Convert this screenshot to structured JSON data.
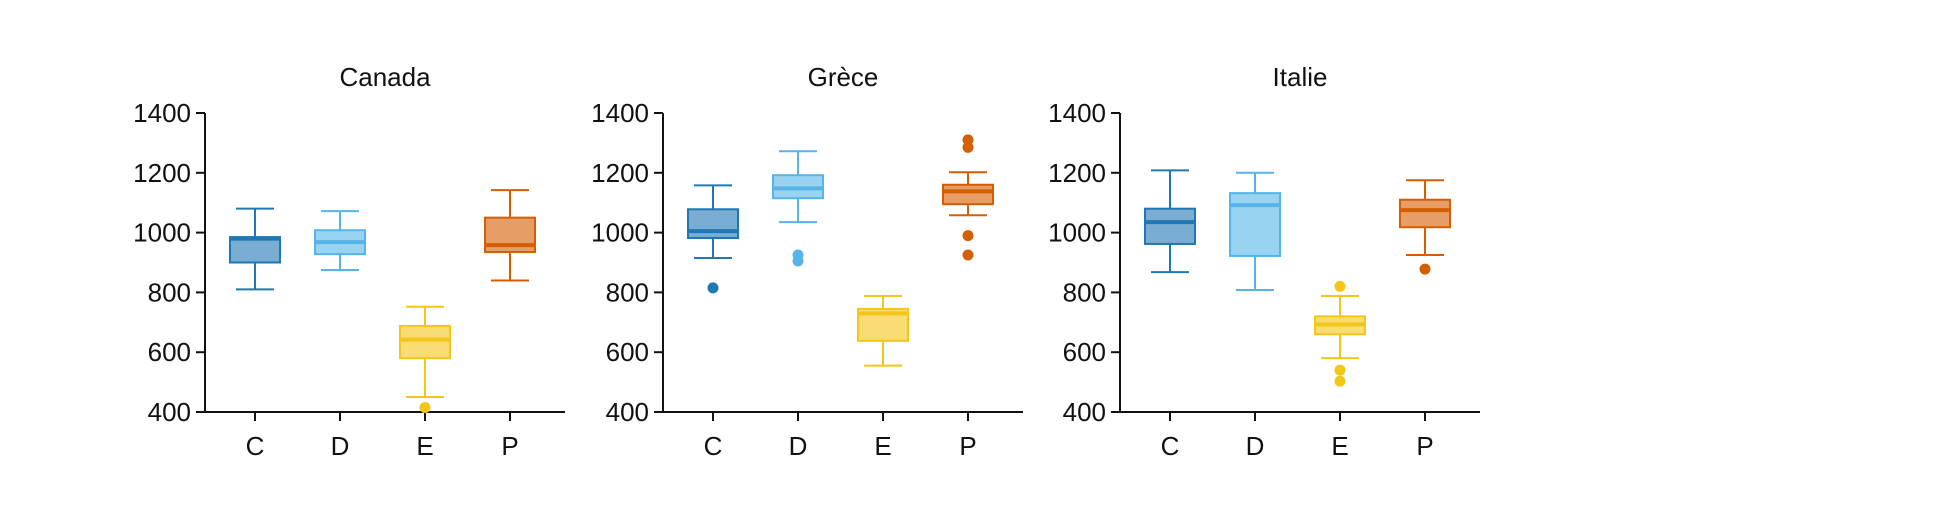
{
  "chart_data": [
    {
      "type": "box",
      "title": "Canada",
      "categories": [
        "C",
        "D",
        "E",
        "P"
      ],
      "ylim": [
        400,
        1400
      ],
      "yticks": [
        400,
        600,
        800,
        1000,
        1200,
        1400
      ],
      "colors": [
        "#1f77b4",
        "#56b4e9",
        "#f5c518",
        "#d55e00"
      ],
      "boxes": [
        {
          "category": "C",
          "whisker_low": 810,
          "q1": 900,
          "median": 980,
          "q3": 985,
          "whisker_high": 1080,
          "outliers": []
        },
        {
          "category": "D",
          "whisker_low": 875,
          "q1": 928,
          "median": 968,
          "q3": 1008,
          "whisker_high": 1072,
          "outliers": []
        },
        {
          "category": "E",
          "whisker_low": 450,
          "q1": 580,
          "median": 642,
          "q3": 688,
          "whisker_high": 752,
          "outliers": [
            415
          ]
        },
        {
          "category": "P",
          "whisker_low": 840,
          "q1": 935,
          "median": 958,
          "q3": 1050,
          "whisker_high": 1142,
          "outliers": []
        }
      ]
    },
    {
      "type": "box",
      "title": "Grèce",
      "categories": [
        "C",
        "D",
        "E",
        "P"
      ],
      "ylim": [
        400,
        1400
      ],
      "yticks": [
        400,
        600,
        800,
        1000,
        1200,
        1400
      ],
      "colors": [
        "#1f77b4",
        "#56b4e9",
        "#f5c518",
        "#d55e00"
      ],
      "boxes": [
        {
          "category": "C",
          "whisker_low": 915,
          "q1": 982,
          "median": 1005,
          "q3": 1078,
          "whisker_high": 1158,
          "outliers": [
            815
          ]
        },
        {
          "category": "D",
          "whisker_low": 1035,
          "q1": 1115,
          "median": 1148,
          "q3": 1192,
          "whisker_high": 1272,
          "outliers": [
            905,
            925
          ]
        },
        {
          "category": "E",
          "whisker_low": 555,
          "q1": 638,
          "median": 730,
          "q3": 745,
          "whisker_high": 788,
          "outliers": []
        },
        {
          "category": "P",
          "whisker_low": 1058,
          "q1": 1095,
          "median": 1138,
          "q3": 1160,
          "whisker_high": 1202,
          "outliers": [
            1310,
            1285,
            990,
            925
          ]
        }
      ]
    },
    {
      "type": "box",
      "title": "Italie",
      "categories": [
        "C",
        "D",
        "E",
        "P"
      ],
      "ylim": [
        400,
        1400
      ],
      "yticks": [
        400,
        600,
        800,
        1000,
        1200,
        1400
      ],
      "colors": [
        "#1f77b4",
        "#56b4e9",
        "#f5c518",
        "#d55e00"
      ],
      "boxes": [
        {
          "category": "C",
          "whisker_low": 868,
          "q1": 962,
          "median": 1035,
          "q3": 1080,
          "whisker_high": 1208,
          "outliers": []
        },
        {
          "category": "D",
          "whisker_low": 808,
          "q1": 922,
          "median": 1092,
          "q3": 1132,
          "whisker_high": 1200,
          "outliers": []
        },
        {
          "category": "E",
          "whisker_low": 580,
          "q1": 660,
          "median": 693,
          "q3": 720,
          "whisker_high": 788,
          "outliers": [
            820,
            540,
            503
          ]
        },
        {
          "category": "P",
          "whisker_low": 925,
          "q1": 1018,
          "median": 1075,
          "q3": 1110,
          "whisker_high": 1175,
          "outliers": [
            878
          ]
        }
      ]
    }
  ]
}
